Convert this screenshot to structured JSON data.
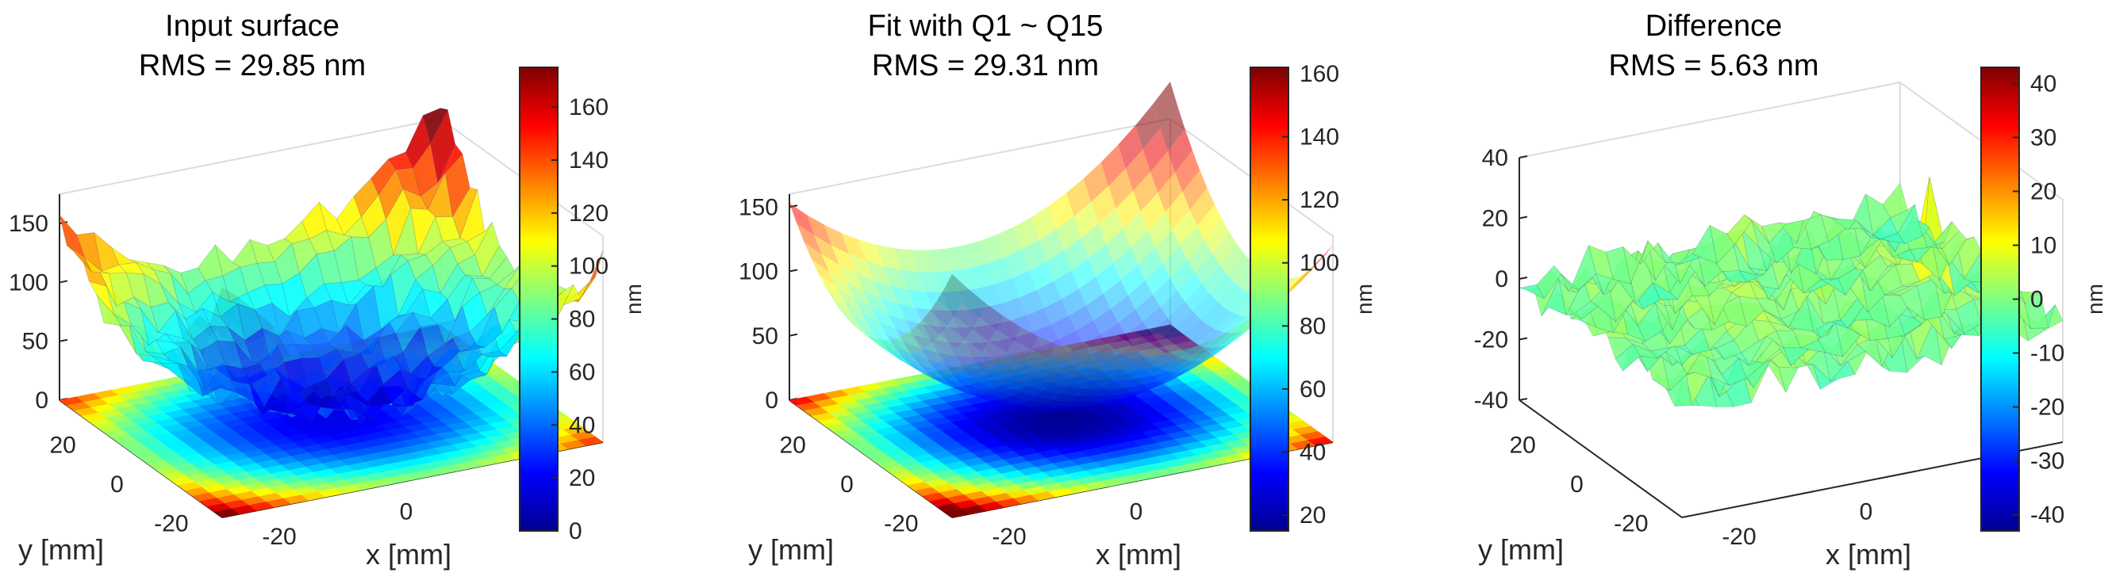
{
  "chart_data": [
    {
      "type": "surface3d",
      "title": "Input surface",
      "subtitle": "RMS = 29.85 nm",
      "xlabel": "x [mm]",
      "ylabel": "y [mm]",
      "x_ticks": [
        "-20",
        "0",
        "20"
      ],
      "y_ticks": [
        "20",
        "0",
        "-20"
      ],
      "z_ticks": [
        "0",
        "50",
        "100",
        "150"
      ],
      "zlim": [
        0,
        175
      ],
      "colorbar": {
        "label": "nm",
        "range": [
          0,
          175
        ],
        "ticks": [
          "0",
          "20",
          "40",
          "60",
          "80",
          "100",
          "120",
          "140",
          "160"
        ]
      },
      "colormap": "jet",
      "noisy": true
    },
    {
      "type": "surface3d",
      "title": "Fit with Q1 ~ Q15",
      "subtitle": "RMS = 29.31 nm",
      "xlabel": "x [mm]",
      "ylabel": "y [mm]",
      "x_ticks": [
        "-20",
        "0",
        "20"
      ],
      "y_ticks": [
        "20",
        "0",
        "-20"
      ],
      "z_ticks": [
        "0",
        "50",
        "100",
        "150"
      ],
      "zlim": [
        0,
        160
      ],
      "colorbar": {
        "label": "nm",
        "range": [
          15,
          162
        ],
        "ticks": [
          "20",
          "40",
          "60",
          "80",
          "100",
          "120",
          "140",
          "160"
        ]
      },
      "colormap": "jet",
      "noisy": false
    },
    {
      "type": "surface3d",
      "title": "Difference",
      "subtitle": "RMS = 5.63 nm",
      "xlabel": "x [mm]",
      "ylabel": "y [mm]",
      "x_ticks": [
        "-20",
        "0",
        "20"
      ],
      "y_ticks": [
        "20",
        "0",
        "-20"
      ],
      "z_ticks": [
        "-40",
        "-20",
        "0",
        "20",
        "40"
      ],
      "zlim": [
        -40,
        40
      ],
      "colorbar": {
        "label": "nm",
        "range": [
          -43,
          43
        ],
        "ticks": [
          "-40",
          "-30",
          "-20",
          "-10",
          "0",
          "10",
          "20",
          "30",
          "40"
        ]
      },
      "colormap": "jet",
      "noisy": true
    }
  ]
}
